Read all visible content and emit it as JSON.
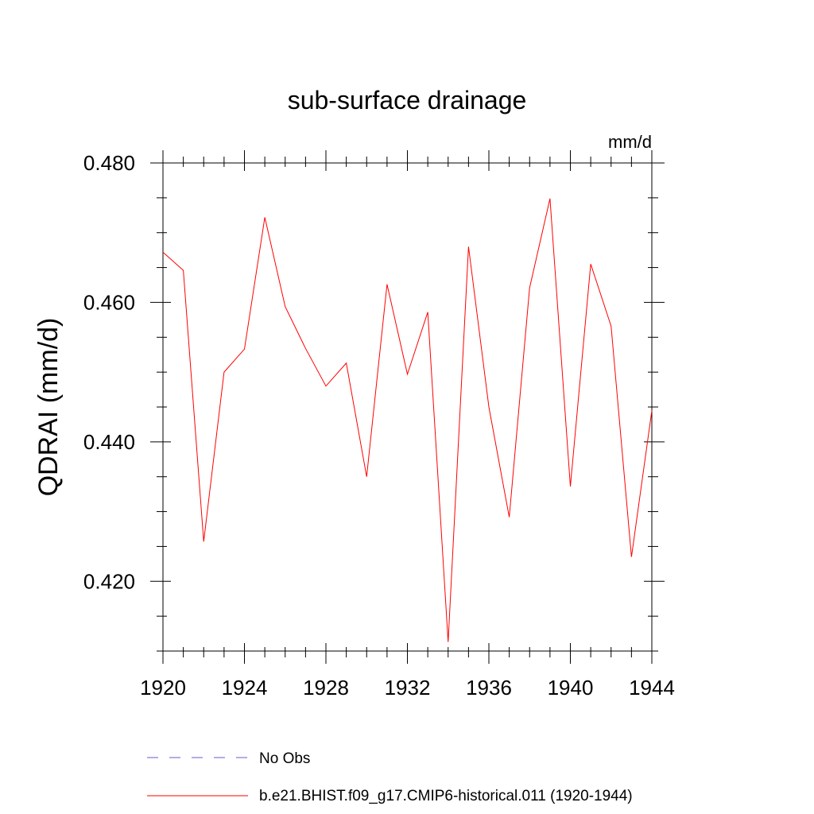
{
  "chart_data": {
    "type": "line",
    "title": "sub-surface drainage",
    "units": "mm/d",
    "ylabel": "QDRAI  (mm/d)",
    "xlabel": "",
    "xlim": [
      1920,
      1944
    ],
    "ylim": [
      0.41,
      0.48
    ],
    "xticks": [
      1920,
      1924,
      1928,
      1932,
      1936,
      1940,
      1944
    ],
    "xtick_labels": [
      "1920",
      "1924",
      "1928",
      "1932",
      "1936",
      "1940",
      "1944"
    ],
    "yticks": [
      0.42,
      0.44,
      0.46,
      0.48
    ],
    "ytick_labels": [
      "0.420",
      "0.440",
      "0.460",
      "0.480"
    ],
    "x": [
      1920,
      1921,
      1922,
      1923,
      1924,
      1925,
      1926,
      1927,
      1928,
      1929,
      1930,
      1931,
      1932,
      1933,
      1934,
      1935,
      1936,
      1937,
      1938,
      1939,
      1940,
      1941,
      1942,
      1943,
      1944
    ],
    "series": [
      {
        "name": "b.e21.BHIST.f09_g17.CMIP6-historical.011 (1920-1944)",
        "color": "#ff0000",
        "values": [
          0.4672,
          0.4646,
          0.4257,
          0.45,
          0.4533,
          0.4722,
          0.4594,
          0.4534,
          0.448,
          0.4513,
          0.435,
          0.4626,
          0.4497,
          0.4586,
          0.4113,
          0.468,
          0.445,
          0.4292,
          0.4621,
          0.4749,
          0.4336,
          0.4655,
          0.4566,
          0.4235,
          0.4445
        ]
      }
    ],
    "legend": {
      "placement": "bottom",
      "entries": [
        {
          "label": "No Obs",
          "color": "#6a5acd",
          "style": "dashed"
        },
        {
          "label": "b.e21.BHIST.f09_g17.CMIP6-historical.011 (1920-1944)",
          "color": "#ff0000",
          "style": "solid"
        }
      ]
    }
  }
}
